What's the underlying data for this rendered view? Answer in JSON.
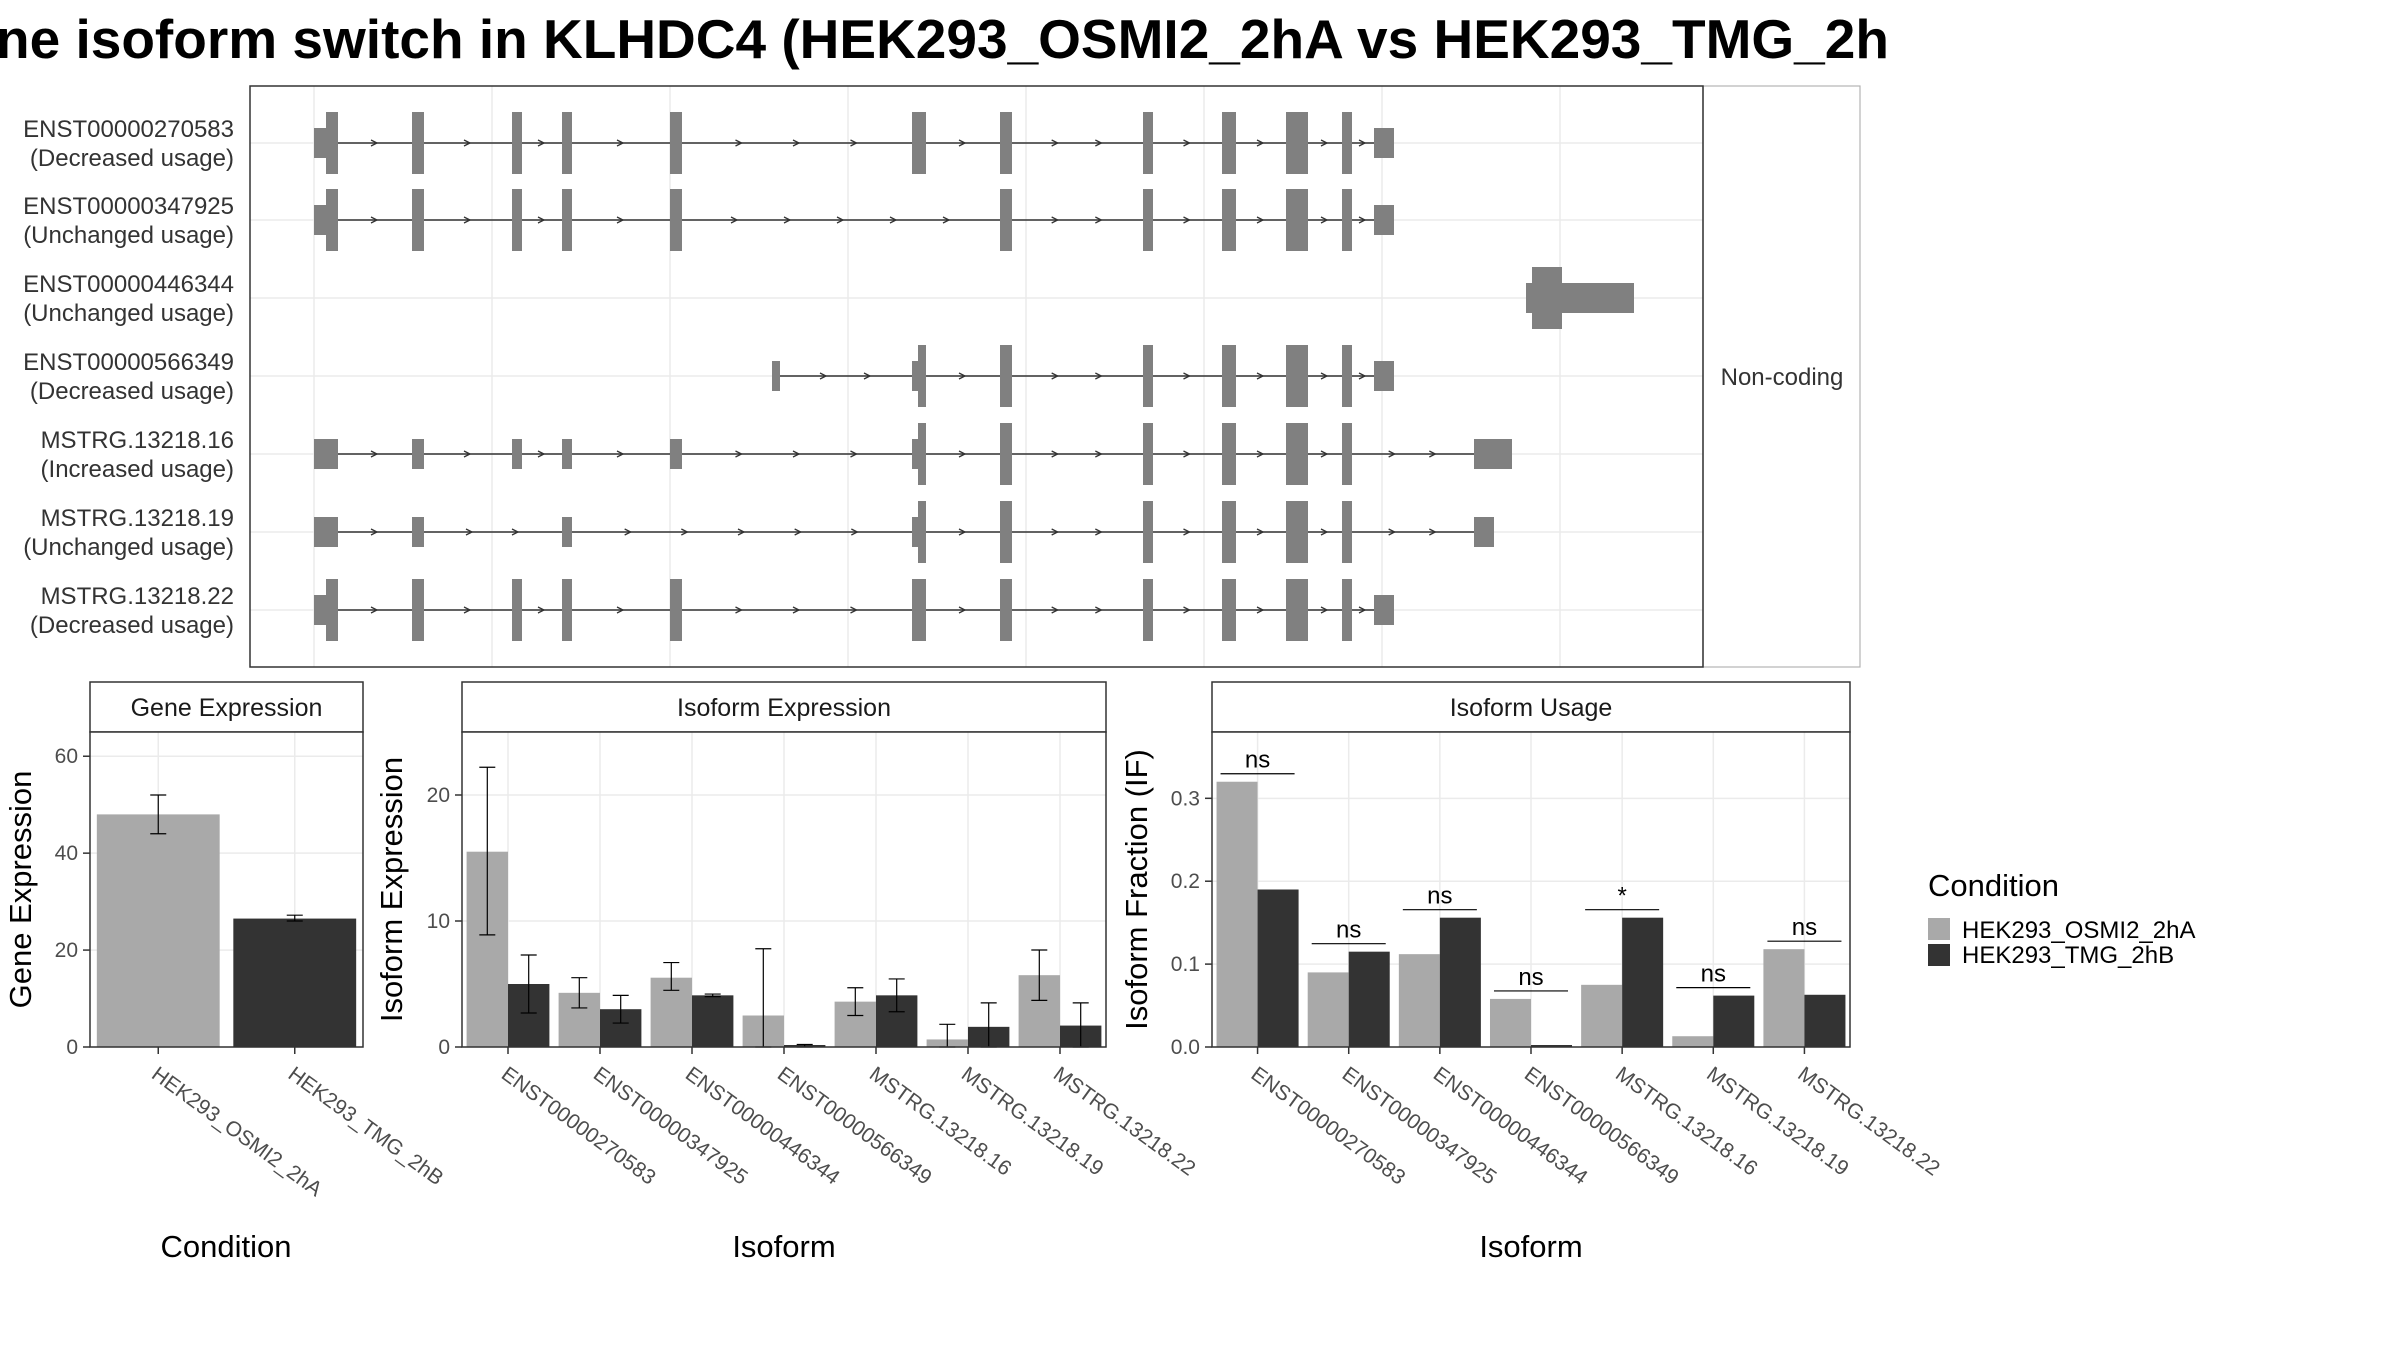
{
  "title": "ne isoform switch in KLHDC4 (HEK293_OSMI2_2hA vs HEK293_TMG_2h",
  "colors": {
    "exon": "#808080",
    "condA": "#a9a9a9",
    "condB": "#333333",
    "panel_border": "#333333",
    "grid": "#ebebeb",
    "strip_bg": "#ffffff"
  },
  "structure": {
    "side_label": "Non-coding",
    "transcripts": [
      {
        "id": "ENST00000270583",
        "usage": "(Decreased usage)"
      },
      {
        "id": "ENST00000347925",
        "usage": "(Unchanged usage)"
      },
      {
        "id": "ENST00000446344",
        "usage": "(Unchanged usage)"
      },
      {
        "id": "ENST00000566349",
        "usage": "(Decreased usage)"
      },
      {
        "id": "MSTRG.13218.16",
        "usage": "(Increased usage)"
      },
      {
        "id": "MSTRG.13218.19",
        "usage": "(Unchanged usage)"
      },
      {
        "id": "MSTRG.13218.22",
        "usage": "(Decreased usage)"
      }
    ]
  },
  "legend": {
    "title": "Condition",
    "items": [
      "HEK293_OSMI2_2hA",
      "HEK293_TMG_2hB"
    ]
  },
  "chart_data": [
    {
      "type": "bar",
      "title": "Gene Expression",
      "xlabel": "Condition",
      "ylabel": "Gene Expression",
      "ylim": [
        0,
        65
      ],
      "yticks": [
        0,
        20,
        40,
        60
      ],
      "categories": [
        "HEK293_OSMI2_2hA",
        "HEK293_TMG_2hB"
      ],
      "values": [
        48,
        26.5
      ],
      "errors": [
        [
          44,
          52
        ],
        [
          26,
          27.2
        ]
      ]
    },
    {
      "type": "bar",
      "title": "Isoform Expression",
      "xlabel": "Isoform",
      "ylabel": "Isoform Expression",
      "ylim": [
        0,
        25
      ],
      "yticks": [
        0,
        10,
        20
      ],
      "categories": [
        "ENST00000270583",
        "ENST00000347925",
        "ENST00000446344",
        "ENST00000566349",
        "MSTRG.13218.16",
        "MSTRG.13218.19",
        "MSTRG.13218.22"
      ],
      "series": [
        {
          "name": "HEK293_OSMI2_2hA",
          "values": [
            15.5,
            4.3,
            5.5,
            2.5,
            3.6,
            0.6,
            5.7
          ],
          "errors": [
            [
              8.9,
              22.2
            ],
            [
              3.1,
              5.5
            ],
            [
              4.5,
              6.7
            ],
            [
              0,
              7.8
            ],
            [
              2.5,
              4.7
            ],
            [
              0,
              1.8
            ],
            [
              3.7,
              7.7
            ]
          ]
        },
        {
          "name": "HEK293_TMG_2hB",
          "values": [
            5,
            3,
            4.1,
            0.1,
            4.1,
            1.6,
            1.7
          ],
          "errors": [
            [
              2.7,
              7.3
            ],
            [
              1.9,
              4.1
            ],
            [
              4,
              4.2
            ],
            [
              0,
              0.2
            ],
            [
              2.8,
              5.4
            ],
            [
              0,
              3.5
            ],
            [
              0,
              3.5
            ]
          ]
        }
      ]
    },
    {
      "type": "bar",
      "title": "Isoform Usage",
      "xlabel": "Isoform",
      "ylabel": "Isoform Fraction (IF)",
      "ylim": [
        0,
        0.38
      ],
      "yticks": [
        "0.0",
        "0.1",
        "0.2",
        "0.3"
      ],
      "categories": [
        "ENST00000270583",
        "ENST00000347925",
        "ENST00000446344",
        "ENST00000566349",
        "MSTRG.13218.16",
        "MSTRG.13218.19",
        "MSTRG.13218.22"
      ],
      "series": [
        {
          "name": "HEK293_OSMI2_2hA",
          "values": [
            0.32,
            0.09,
            0.112,
            0.058,
            0.075,
            0.013,
            0.118
          ]
        },
        {
          "name": "HEK293_TMG_2hB",
          "values": [
            0.19,
            0.115,
            0.156,
            0,
            0.156,
            0.062,
            0.063
          ]
        }
      ],
      "significance": [
        "ns",
        "ns",
        "ns",
        "ns",
        "*",
        "ns",
        "ns"
      ]
    }
  ]
}
